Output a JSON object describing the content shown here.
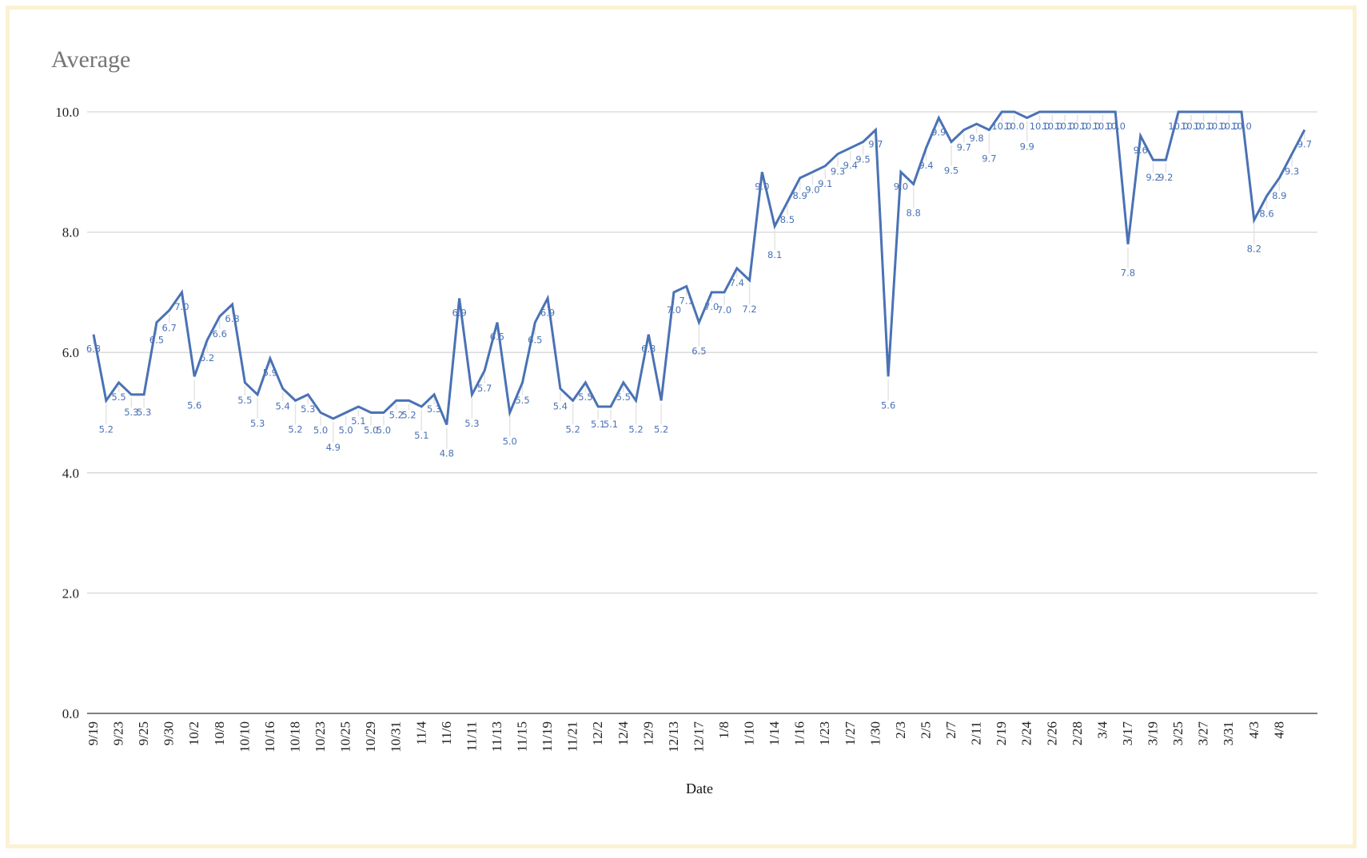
{
  "chart_data": {
    "type": "line",
    "title": "Average",
    "xlabel": "Date",
    "ylabel": "",
    "ylim": [
      0,
      10
    ],
    "yticks": [
      "0.0",
      "2.0",
      "4.0",
      "6.0",
      "8.0",
      "10.0"
    ],
    "grid": true,
    "legend": "none",
    "line_color": "#4a72b5",
    "frame_color": "#fbf1d3",
    "x_tick_labels": [
      "9/19",
      "9/23",
      "9/25",
      "9/30",
      "10/2",
      "10/8",
      "10/10",
      "10/16",
      "10/18",
      "10/23",
      "10/25",
      "10/29",
      "10/31",
      "11/4",
      "11/6",
      "11/11",
      "11/13",
      "11/15",
      "11/19",
      "11/21",
      "12/2",
      "12/4",
      "12/9",
      "12/13",
      "12/17",
      "1/8",
      "1/10",
      "1/14",
      "1/16",
      "1/23",
      "1/27",
      "1/30",
      "2/3",
      "2/5",
      "2/7",
      "2/11",
      "2/19",
      "2/24",
      "2/26",
      "2/28",
      "3/4",
      "3/17",
      "3/19",
      "3/25",
      "3/27",
      "3/31",
      "4/3",
      "4/8"
    ],
    "series": [
      {
        "name": "Average",
        "values": [
          6.3,
          5.2,
          5.5,
          5.3,
          5.3,
          6.5,
          6.7,
          7.0,
          5.6,
          6.2,
          6.6,
          6.8,
          5.5,
          5.3,
          5.9,
          5.4,
          5.2,
          5.3,
          5.0,
          4.9,
          5.0,
          5.1,
          5.0,
          5.0,
          5.2,
          5.2,
          5.1,
          5.3,
          4.8,
          6.9,
          5.3,
          5.7,
          6.5,
          5.0,
          5.5,
          6.5,
          6.9,
          5.4,
          5.2,
          5.5,
          5.1,
          5.1,
          5.5,
          5.2,
          6.3,
          5.2,
          7.0,
          7.1,
          6.5,
          7.0,
          7.0,
          7.4,
          7.2,
          9.0,
          8.1,
          8.5,
          8.9,
          9.0,
          9.1,
          9.3,
          9.4,
          9.5,
          9.7,
          5.6,
          9.0,
          8.8,
          9.4,
          9.9,
          9.5,
          9.7,
          9.8,
          9.7,
          10.0,
          10.0,
          9.9,
          10.0,
          10.0,
          10.0,
          10.0,
          10.0,
          10.0,
          10.0,
          7.8,
          9.6,
          9.2,
          9.2,
          10.0,
          10.0,
          10.0,
          10.0,
          10.0,
          10.0,
          8.2,
          8.6,
          8.9,
          9.3,
          9.7
        ]
      }
    ]
  }
}
